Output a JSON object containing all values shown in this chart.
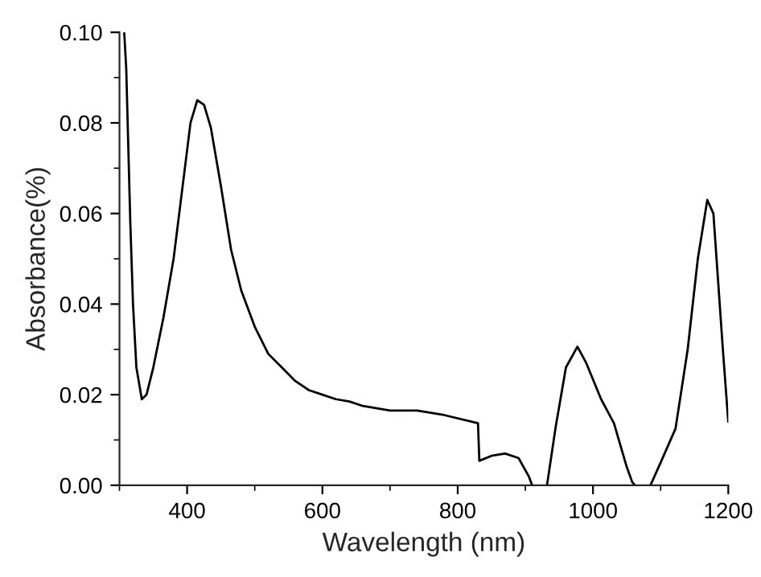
{
  "chart_data": {
    "type": "line",
    "xlabel": "Wavelength (nm)",
    "ylabel": "Absorbance(%)",
    "xlim": [
      300,
      1200
    ],
    "ylim": [
      0,
      0.1
    ],
    "xticks": [
      400,
      600,
      800,
      1000,
      1200
    ],
    "yticks": [
      {
        "value": 0,
        "label": "0.00"
      },
      {
        "value": 0.02,
        "label": "0.02"
      },
      {
        "value": 0.04,
        "label": "0.04"
      },
      {
        "value": 0.06,
        "label": "0.06"
      },
      {
        "value": 0.08,
        "label": "0.08"
      },
      {
        "value": 0.1,
        "label": "0.10"
      }
    ],
    "grid": false,
    "legend": false,
    "line_style": "solid",
    "marker": "none",
    "series": [
      {
        "color": "#000000",
        "x": [
          307,
          310,
          313,
          316,
          320,
          325,
          333,
          340,
          350,
          365,
          380,
          395,
          405,
          415,
          425,
          435,
          450,
          465,
          480,
          500,
          520,
          540,
          560,
          580,
          600,
          620,
          640,
          660,
          700,
          740,
          780,
          830,
          832,
          850,
          870,
          890,
          905,
          910,
          920,
          932,
          945,
          960,
          977,
          990,
          1012,
          1031,
          1050,
          1058,
          1062,
          1075,
          1085,
          1100,
          1122,
          1140,
          1155,
          1169,
          1178,
          1185,
          1192,
          1200
        ],
        "values": [
          0.1,
          0.092,
          0.075,
          0.058,
          0.04,
          0.026,
          0.019,
          0.02,
          0.026,
          0.037,
          0.05,
          0.068,
          0.08,
          0.085,
          0.084,
          0.079,
          0.066,
          0.052,
          0.043,
          0.035,
          0.029,
          0.026,
          0.023,
          0.021,
          0.02,
          0.019,
          0.0185,
          0.0175,
          0.0165,
          0.0165,
          0.0155,
          0.0137,
          0.0054,
          0.0065,
          0.007,
          0.006,
          0.002,
          0,
          null,
          0,
          0.013,
          0.026,
          0.0306,
          0.027,
          0.019,
          0.0137,
          0.004,
          0.0007,
          0,
          null,
          0,
          0.005,
          0.0125,
          0.03,
          0.05,
          0.063,
          0.06,
          0.045,
          0.03,
          0.014
        ]
      }
    ]
  }
}
